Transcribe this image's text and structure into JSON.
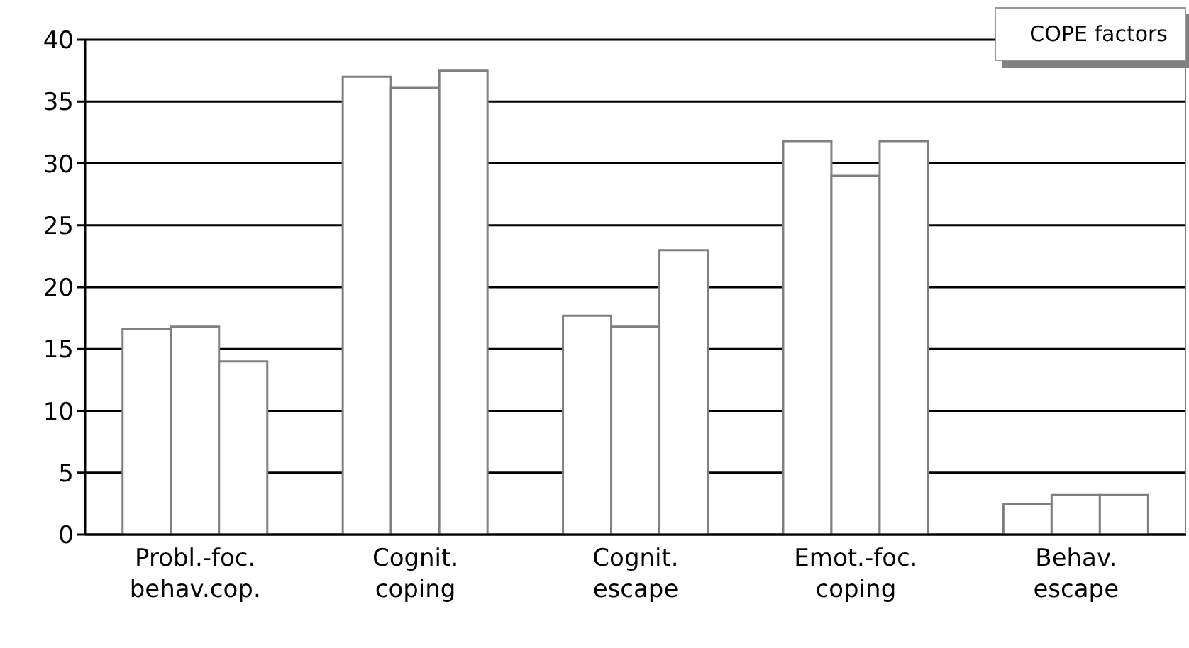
{
  "chart_data": {
    "type": "bar",
    "title": "COPE factors",
    "categories": [
      "Probl.-foc.\nbehav.cop.",
      "Cognit.\ncoping",
      "Cognit.\nescape",
      "Emot.-foc.\ncoping",
      "Behav.\nescape"
    ],
    "series": [
      {
        "color": "#ffffff",
        "values": [
          16.6,
          37.0,
          17.7,
          31.8,
          2.5
        ]
      },
      {
        "color": "#ffffff",
        "values": [
          16.8,
          36.1,
          16.8,
          29.0,
          3.2
        ]
      },
      {
        "color": "#ffffff",
        "values": [
          14.0,
          37.5,
          23.0,
          31.8,
          3.2
        ]
      }
    ],
    "ylim": [
      0,
      40
    ],
    "yticks": [
      0,
      5,
      10,
      15,
      20,
      25,
      30,
      35,
      40
    ],
    "grid": "y"
  }
}
